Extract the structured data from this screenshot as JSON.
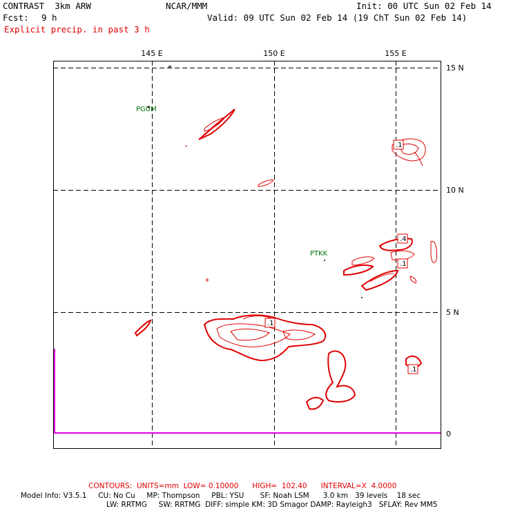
{
  "header": {
    "model": "CONTRAST  3km ARW",
    "center": "NCAR/MMM",
    "init": "Init: 00 UTC Sun 02 Feb 14",
    "fcst_label": "Fcst:",
    "fcst_value": "9 h",
    "valid": "Valid: 09 UTC Sun 02 Feb 14 (19 ChT Sun 02 Feb 14)",
    "field": "Explicit precip. in past 3 h"
  },
  "map": {
    "lon_labels": [
      "145 E",
      "150 E",
      "155 E"
    ],
    "lat_labels": [
      "15 N",
      "10 N",
      "5 N"
    ],
    "axis_zero": "0",
    "stations": [
      "PGUM",
      "PTKK"
    ],
    "contour_labels": [
      ".1",
      ".4",
      ".1",
      ".1",
      ".1"
    ],
    "line_color": "#e00000",
    "station_color": "#007000",
    "trace_color": "#e000e0"
  },
  "footer": {
    "contours": "CONTOURS:  UNITS=mm  LOW= 0.10000      HIGH=  102.40      INTERVAL=X  4.0000",
    "info1": "Model Info: V3.5.1     CU: No Cu     MP: Thompson     PBL: YSU       SF: Noah LSM      3.0 km   39 levels    18 sec",
    "info2": "LW: RRTMG     SW: RRTMG  DIFF: simple KM: 3D Smagor DAMP: Rayleigh3   SFLAY: Rev MM5"
  }
}
